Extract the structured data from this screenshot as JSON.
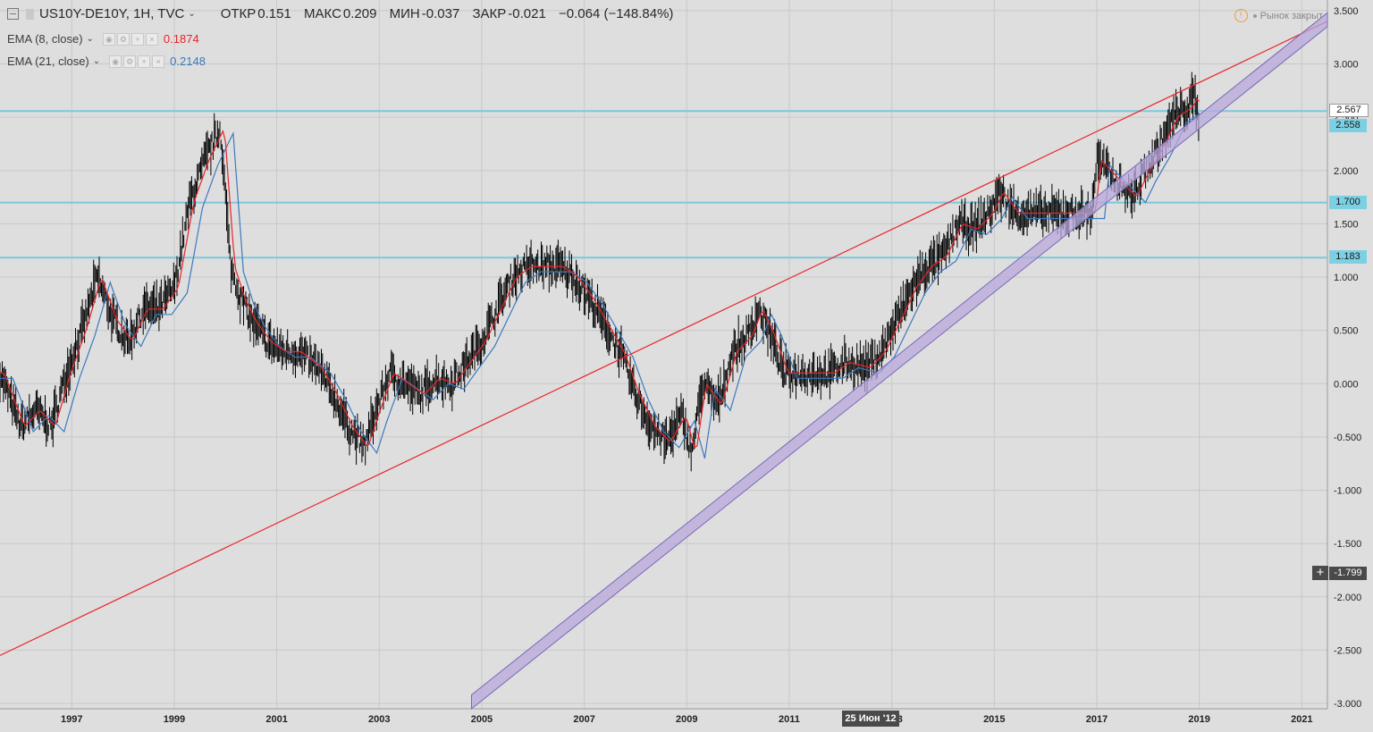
{
  "header": {
    "symbol": "US10Y-DE10Y, 1H, TVC",
    "open_label": "ОТКР",
    "open_value": "0.151",
    "high_label": "МАКС",
    "high_value": "0.209",
    "low_label": "МИН",
    "low_value": "-0.037",
    "close_label": "ЗАКР",
    "close_value": "-0.021",
    "change": "−0.064 (−148.84%)",
    "market_status": "Рынок закрыт"
  },
  "indicators": [
    {
      "label": "EMA (8, close)",
      "value": "0.1874",
      "color": "#e8242a"
    },
    {
      "label": "EMA (21, close)",
      "value": "0.2148",
      "color": "#3a7ac0"
    }
  ],
  "price_labels": {
    "last_price": "2.567",
    "line_a": "2.558",
    "line_b": "1.700",
    "line_c": "1.183",
    "crosshair": "-1.799"
  },
  "crosshair_date": "25 Июн '12",
  "colors": {
    "background": "#dedede",
    "hline": "#7cc8dc",
    "resistance": "#e8242a",
    "channel_fill": "#b8a8dc",
    "channel_edge": "#7a68b8",
    "price": "#000000",
    "ema8": "#e8242a",
    "ema21": "#3a7ac0"
  },
  "chart_data": {
    "type": "line",
    "title": "US10Y-DE10Y, 1H, TVC",
    "xlabel": "",
    "ylabel": "",
    "x_range": [
      1995.6,
      2021.5
    ],
    "ylim": [
      -3.05,
      3.6
    ],
    "y_ticks": [
      3.5,
      3.0,
      2.5,
      2.0,
      1.5,
      1.0,
      0.5,
      0.0,
      -0.5,
      -1.0,
      -1.5,
      -2.0,
      -2.5,
      -3.0
    ],
    "y_tick_labels": [
      "3.500",
      "3.000",
      "2.500",
      "2.000",
      "1.500",
      "1.000",
      "0.500",
      "0.000",
      "-0.500",
      "-1.000",
      "-1.500",
      "-2.000",
      "-2.500",
      "-3.000"
    ],
    "x_ticks": [
      1997,
      1999,
      2001,
      2003,
      2005,
      2007,
      2009,
      2011,
      2013,
      2015,
      2017,
      2019,
      2021
    ],
    "x_tick_labels": [
      "1997",
      "1999",
      "2001",
      "2003",
      "2005",
      "2007",
      "2009",
      "2011",
      "2013",
      "2015",
      "2017",
      "2019",
      "2021"
    ],
    "series": [
      {
        "name": "US10Y-DE10Y",
        "x": [
          1995.6,
          1996.0,
          1996.3,
          1996.6,
          1996.9,
          1997.2,
          1997.5,
          1997.8,
          1998.1,
          1998.4,
          1998.7,
          1999.0,
          1999.3,
          1999.6,
          1999.9,
          2000.1,
          2000.3,
          2000.5,
          2000.8,
          2001.1,
          2001.4,
          2001.8,
          2002.1,
          2002.4,
          2002.7,
          2002.9,
          2003.2,
          2003.5,
          2003.8,
          2004.1,
          2004.4,
          2004.7,
          2005.0,
          2005.3,
          2005.6,
          2005.9,
          2006.2,
          2006.5,
          2006.8,
          2007.1,
          2007.4,
          2007.7,
          2008.0,
          2008.3,
          2008.6,
          2008.9,
          2009.1,
          2009.3,
          2009.6,
          2009.9,
          2010.2,
          2010.4,
          2010.6,
          2010.9,
          2011.2,
          2011.5,
          2011.8,
          2012.1,
          2012.5,
          2012.8,
          2013.1,
          2013.4,
          2013.7,
          2014.0,
          2014.3,
          2014.6,
          2014.9,
          2015.1,
          2015.4,
          2015.7,
          2016.0,
          2016.3,
          2016.6,
          2016.9,
          2017.0,
          2017.2,
          2017.4,
          2017.7,
          2017.9,
          2018.2,
          2018.5,
          2018.8,
          2018.9,
          2019.0
        ],
        "values": [
          0.1,
          -0.4,
          -0.25,
          -0.4,
          0.1,
          0.5,
          1.0,
          0.6,
          0.4,
          0.7,
          0.7,
          0.9,
          1.7,
          2.1,
          2.4,
          1.1,
          0.8,
          0.6,
          0.4,
          0.3,
          0.3,
          0.15,
          -0.1,
          -0.4,
          -0.6,
          -0.3,
          0.1,
          0.0,
          -0.1,
          0.05,
          0.0,
          0.2,
          0.4,
          0.7,
          1.0,
          1.1,
          1.1,
          1.1,
          1.0,
          0.8,
          0.55,
          0.3,
          -0.1,
          -0.4,
          -0.55,
          -0.3,
          -0.65,
          0.0,
          -0.2,
          0.3,
          0.45,
          0.7,
          0.5,
          0.1,
          0.1,
          0.1,
          0.1,
          0.2,
          0.15,
          0.3,
          0.6,
          0.9,
          1.1,
          1.2,
          1.5,
          1.45,
          1.6,
          1.8,
          1.6,
          1.6,
          1.6,
          1.6,
          1.6,
          1.6,
          2.1,
          2.0,
          1.9,
          1.75,
          1.95,
          2.2,
          2.5,
          2.6,
          2.7,
          2.45
        ]
      },
      {
        "name": "EMA (8, close)",
        "last": 0.1874
      },
      {
        "name": "EMA (21, close)",
        "last": 0.2148
      }
    ],
    "horizontal_lines": [
      2.558,
      1.7,
      1.183
    ],
    "trend_lines": [
      {
        "type": "resistance",
        "points": [
          [
            1995.6,
            -2.55
          ],
          [
            2021.5,
            3.4
          ]
        ]
      },
      {
        "type": "channel",
        "points": [
          [
            2004.8,
            -3.05
          ],
          [
            2021.5,
            3.35
          ]
        ],
        "width": 0.13
      }
    ]
  }
}
